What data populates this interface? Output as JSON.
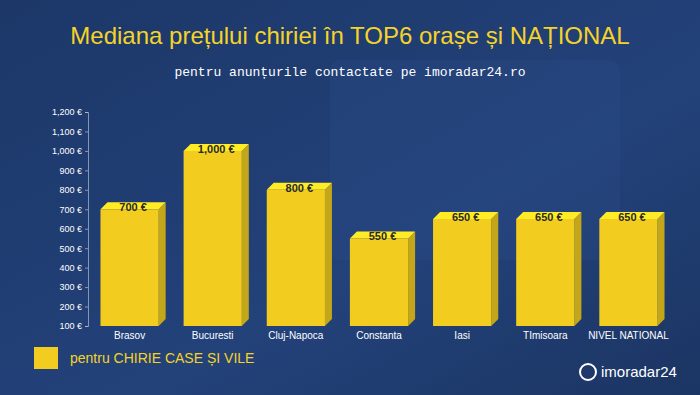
{
  "chart_data": {
    "type": "bar",
    "title": "Mediana prețului chiriei în TOP6 orașe și NAȚIONAL",
    "subtitle": "pentru anunțurile contactate pe imoradar24.ro",
    "annotations": [
      "imoradar24"
    ],
    "categories": [
      "Brasov",
      "Bucuresti",
      "Cluj-Napoca",
      "Constanta",
      "Iasi",
      "TImisoara",
      "NIVEL NATIONAL"
    ],
    "series": [
      {
        "name": "pentru CHIRIE CASE ȘI VILE",
        "color": "#f2cd1f",
        "values": [
          700,
          1000,
          800,
          550,
          650,
          650,
          650
        ],
        "value_labels": [
          "700 €",
          "1,000 €",
          "800 €",
          "550 €",
          "650 €",
          "650 €",
          "650 €"
        ]
      }
    ],
    "ylim": [
      100,
      1200
    ],
    "yticks": [
      {
        "value": 100,
        "label": "100 €"
      },
      {
        "value": 200,
        "label": "200 €"
      },
      {
        "value": 300,
        "label": "300 €"
      },
      {
        "value": 400,
        "label": "400 €"
      },
      {
        "value": 500,
        "label": "500 €"
      },
      {
        "value": 600,
        "label": "600 €"
      },
      {
        "value": 700,
        "label": "700 €"
      },
      {
        "value": 800,
        "label": "800 €"
      },
      {
        "value": 900,
        "label": "900 €"
      },
      {
        "value": 1000,
        "label": "1,000 €"
      },
      {
        "value": 1100,
        "label": "1,100 €"
      },
      {
        "value": 1200,
        "label": "1,200 €"
      }
    ],
    "grid": false,
    "data_labels": true,
    "legend": "bottom-left"
  }
}
